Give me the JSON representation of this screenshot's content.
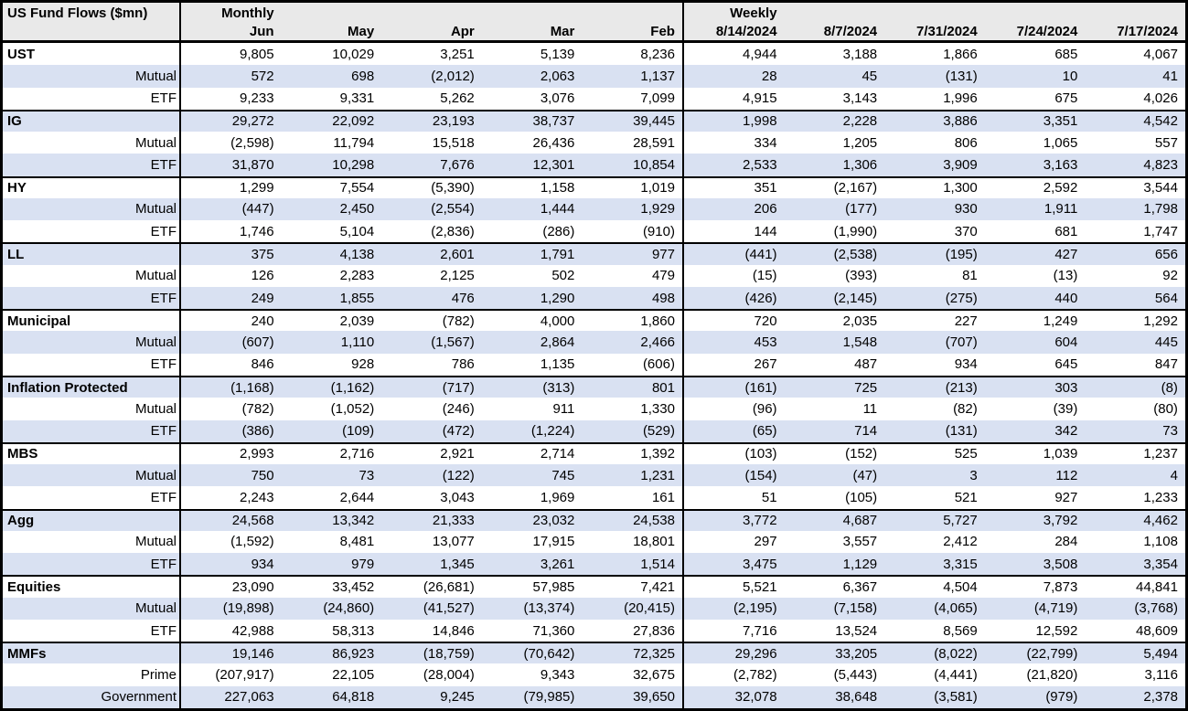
{
  "chart_data": {
    "type": "table",
    "title": "US Fund Flows ($mn)",
    "section_labels": {
      "monthly": "Monthly",
      "weekly": "Weekly"
    },
    "monthly_columns": [
      "Jun",
      "May",
      "Apr",
      "Mar",
      "Feb"
    ],
    "weekly_columns": [
      "8/14/2024",
      "8/7/2024",
      "7/31/2024",
      "7/24/2024",
      "7/17/2024"
    ],
    "number_format": "negatives-in-parentheses, thousands-commas",
    "groups": [
      {
        "name": "UST",
        "rows": [
          {
            "label": "UST",
            "category": true,
            "monthly": [
              9805,
              10029,
              3251,
              5139,
              8236
            ],
            "weekly": [
              4944,
              3188,
              1866,
              685,
              4067
            ]
          },
          {
            "label": "Mutual",
            "category": false,
            "monthly": [
              572,
              698,
              -2012,
              2063,
              1137
            ],
            "weekly": [
              28,
              45,
              -131,
              10,
              41
            ]
          },
          {
            "label": "ETF",
            "category": false,
            "monthly": [
              9233,
              9331,
              5262,
              3076,
              7099
            ],
            "weekly": [
              4915,
              3143,
              1996,
              675,
              4026
            ]
          }
        ]
      },
      {
        "name": "IG",
        "rows": [
          {
            "label": "IG",
            "category": true,
            "monthly": [
              29272,
              22092,
              23193,
              38737,
              39445
            ],
            "weekly": [
              1998,
              2228,
              3886,
              3351,
              4542
            ]
          },
          {
            "label": "Mutual",
            "category": false,
            "monthly": [
              -2598,
              11794,
              15518,
              26436,
              28591
            ],
            "weekly": [
              334,
              1205,
              806,
              1065,
              557
            ]
          },
          {
            "label": "ETF",
            "category": false,
            "monthly": [
              31870,
              10298,
              7676,
              12301,
              10854
            ],
            "weekly": [
              2533,
              1306,
              3909,
              3163,
              4823
            ]
          }
        ]
      },
      {
        "name": "HY",
        "rows": [
          {
            "label": "HY",
            "category": true,
            "monthly": [
              1299,
              7554,
              -5390,
              1158,
              1019
            ],
            "weekly": [
              351,
              -2167,
              1300,
              2592,
              3544
            ]
          },
          {
            "label": "Mutual",
            "category": false,
            "monthly": [
              -447,
              2450,
              -2554,
              1444,
              1929
            ],
            "weekly": [
              206,
              -177,
              930,
              1911,
              1798
            ]
          },
          {
            "label": "ETF",
            "category": false,
            "monthly": [
              1746,
              5104,
              -2836,
              -286,
              -910
            ],
            "weekly": [
              144,
              -1990,
              370,
              681,
              1747
            ]
          }
        ]
      },
      {
        "name": "LL",
        "rows": [
          {
            "label": "LL",
            "category": true,
            "monthly": [
              375,
              4138,
              2601,
              1791,
              977
            ],
            "weekly": [
              -441,
              -2538,
              -195,
              427,
              656
            ]
          },
          {
            "label": "Mutual",
            "category": false,
            "monthly": [
              126,
              2283,
              2125,
              502,
              479
            ],
            "weekly": [
              -15,
              -393,
              81,
              -13,
              92
            ]
          },
          {
            "label": "ETF",
            "category": false,
            "monthly": [
              249,
              1855,
              476,
              1290,
              498
            ],
            "weekly": [
              -426,
              -2145,
              -275,
              440,
              564
            ]
          }
        ]
      },
      {
        "name": "Municipal",
        "rows": [
          {
            "label": "Municipal",
            "category": true,
            "monthly": [
              240,
              2039,
              -782,
              4000,
              1860
            ],
            "weekly": [
              720,
              2035,
              227,
              1249,
              1292
            ]
          },
          {
            "label": "Mutual",
            "category": false,
            "monthly": [
              -607,
              1110,
              -1567,
              2864,
              2466
            ],
            "weekly": [
              453,
              1548,
              -707,
              604,
              445
            ]
          },
          {
            "label": "ETF",
            "category": false,
            "monthly": [
              846,
              928,
              786,
              1135,
              -606
            ],
            "weekly": [
              267,
              487,
              934,
              645,
              847
            ]
          }
        ]
      },
      {
        "name": "Inflation Protected",
        "rows": [
          {
            "label": "Inflation Protected",
            "category": true,
            "monthly": [
              -1168,
              -1162,
              -717,
              -313,
              801
            ],
            "weekly": [
              -161,
              725,
              -213,
              303,
              -8
            ]
          },
          {
            "label": "Mutual",
            "category": false,
            "monthly": [
              -782,
              -1052,
              -246,
              911,
              1330
            ],
            "weekly": [
              -96,
              11,
              -82,
              -39,
              -80
            ]
          },
          {
            "label": "ETF",
            "category": false,
            "monthly": [
              -386,
              -109,
              -472,
              -1224,
              -529
            ],
            "weekly": [
              -65,
              714,
              -131,
              342,
              73
            ]
          }
        ]
      },
      {
        "name": "MBS",
        "rows": [
          {
            "label": "MBS",
            "category": true,
            "monthly": [
              2993,
              2716,
              2921,
              2714,
              1392
            ],
            "weekly": [
              -103,
              -152,
              525,
              1039,
              1237
            ]
          },
          {
            "label": "Mutual",
            "category": false,
            "monthly": [
              750,
              73,
              -122,
              745,
              1231
            ],
            "weekly": [
              -154,
              -47,
              3,
              112,
              4
            ]
          },
          {
            "label": "ETF",
            "category": false,
            "monthly": [
              2243,
              2644,
              3043,
              1969,
              161
            ],
            "weekly": [
              51,
              -105,
              521,
              927,
              1233
            ]
          }
        ]
      },
      {
        "name": "Agg",
        "rows": [
          {
            "label": "Agg",
            "category": true,
            "monthly": [
              24568,
              13342,
              21333,
              23032,
              24538
            ],
            "weekly": [
              3772,
              4687,
              5727,
              3792,
              4462
            ]
          },
          {
            "label": "Mutual",
            "category": false,
            "monthly": [
              -1592,
              8481,
              13077,
              17915,
              18801
            ],
            "weekly": [
              297,
              3557,
              2412,
              284,
              1108
            ]
          },
          {
            "label": "ETF",
            "category": false,
            "monthly": [
              934,
              979,
              1345,
              3261,
              1514
            ],
            "weekly": [
              3475,
              1129,
              3315,
              3508,
              3354
            ]
          }
        ]
      },
      {
        "name": "Equities",
        "rows": [
          {
            "label": "Equities",
            "category": true,
            "monthly": [
              23090,
              33452,
              -26681,
              57985,
              7421
            ],
            "weekly": [
              5521,
              6367,
              4504,
              7873,
              44841
            ]
          },
          {
            "label": "Mutual",
            "category": false,
            "monthly": [
              -19898,
              -24860,
              -41527,
              -13374,
              -20415
            ],
            "weekly": [
              -2195,
              -7158,
              -4065,
              -4719,
              -3768
            ]
          },
          {
            "label": "ETF",
            "category": false,
            "monthly": [
              42988,
              58313,
              14846,
              71360,
              27836
            ],
            "weekly": [
              7716,
              13524,
              8569,
              12592,
              48609
            ]
          }
        ]
      },
      {
        "name": "MMFs",
        "rows": [
          {
            "label": "MMFs",
            "category": true,
            "monthly": [
              19146,
              86923,
              -18759,
              -70642,
              72325
            ],
            "weekly": [
              29296,
              33205,
              -8022,
              -22799,
              5494
            ]
          },
          {
            "label": "Prime",
            "category": false,
            "monthly": [
              -207917,
              22105,
              -28004,
              9343,
              32675
            ],
            "weekly": [
              -2782,
              -5443,
              -4441,
              -21820,
              3116
            ]
          },
          {
            "label": "Government",
            "category": false,
            "monthly": [
              227063,
              64818,
              9245,
              -79985,
              39650
            ],
            "weekly": [
              32078,
              38648,
              -3581,
              -979,
              2378
            ]
          }
        ]
      }
    ]
  },
  "colors": {
    "band": "#d9e1f2",
    "header_bg": "#e9e9e9",
    "border": "#000000",
    "text": "#000000",
    "background": "#ffffff"
  }
}
